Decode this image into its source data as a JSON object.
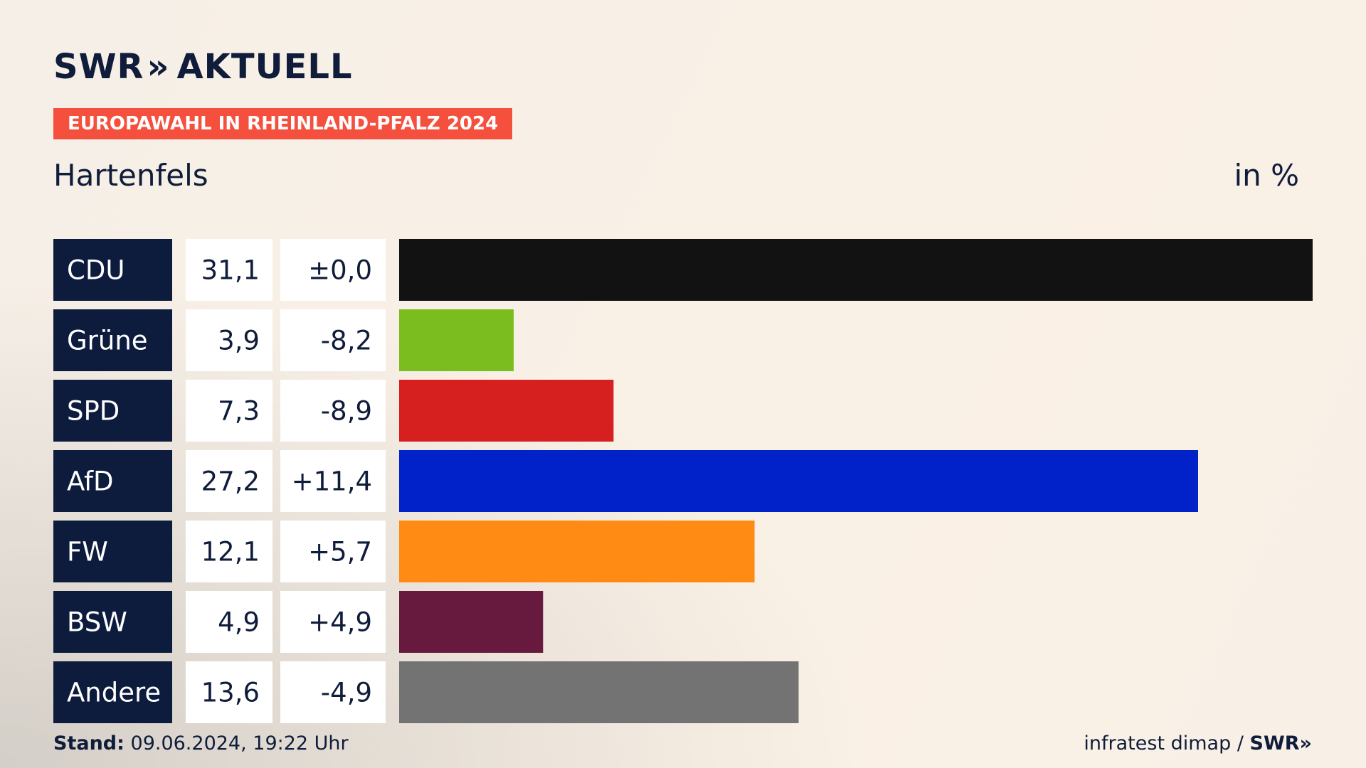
{
  "brand": {
    "logo_left": "SWR",
    "logo_chevrons": "»",
    "logo_right": "AKTUELL"
  },
  "badge": "EUROPAWAHL IN RHEINLAND-PFALZ 2024",
  "place": "Hartenfels",
  "unit": "in %",
  "footer": {
    "stand_label": "Stand:",
    "stand_value": "09.06.2024, 19:22 Uhr",
    "source": "infratest dimap /",
    "source_brand": "SWR»"
  },
  "colors": {
    "party_cell": "#0d1b3d",
    "value_cell": "#ffffff",
    "badge": "#f4503d"
  },
  "chart_data": {
    "type": "bar",
    "orientation": "horizontal",
    "categories": [
      "CDU",
      "Grüne",
      "SPD",
      "AfD",
      "FW",
      "BSW",
      "Andere"
    ],
    "values": [
      31.1,
      3.9,
      7.3,
      27.2,
      12.1,
      4.9,
      13.6
    ],
    "value_labels": [
      "31,1",
      "3,9",
      "7,3",
      "27,2",
      "12,1",
      "4,9",
      "13,6"
    ],
    "change_labels": [
      "±0,0",
      "-8,2",
      "-8,9",
      "+11,4",
      "+5,7",
      "+4,9",
      "-4,9"
    ],
    "changes": [
      0.0,
      -8.2,
      -8.9,
      11.4,
      5.7,
      4.9,
      -4.9
    ],
    "bar_colors": [
      "#121212",
      "#7bbc1e",
      "#d61f1f",
      "#0022c8",
      "#ff8a14",
      "#67193e",
      "#737373"
    ],
    "xlim": [
      0,
      31.1
    ]
  }
}
